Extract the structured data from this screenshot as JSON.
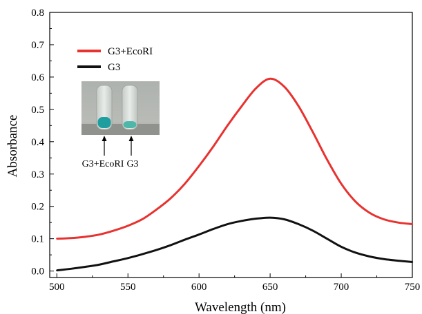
{
  "chart_data": {
    "type": "line",
    "title": "",
    "xlabel": "Wavelength (nm)",
    "ylabel": "Absorbance",
    "xlim": [
      495,
      750
    ],
    "ylim": [
      -0.02,
      0.8
    ],
    "x_ticks": [
      "500",
      "550",
      "600",
      "650",
      "700",
      "750"
    ],
    "y_ticks": [
      "0.0",
      "0.1",
      "0.2",
      "0.3",
      "0.4",
      "0.5",
      "0.6",
      "0.7",
      "0.8"
    ],
    "grid": false,
    "legend_position": "top-left",
    "series": [
      {
        "name": "G3+EcoRI",
        "color": "#e8322f",
        "x": [
          500,
          510,
          520,
          530,
          540,
          550,
          560,
          570,
          580,
          590,
          600,
          610,
          620,
          630,
          640,
          650,
          660,
          670,
          680,
          690,
          700,
          710,
          720,
          730,
          740,
          750
        ],
        "y": [
          0.1,
          0.102,
          0.106,
          0.113,
          0.125,
          0.14,
          0.16,
          0.19,
          0.225,
          0.27,
          0.325,
          0.385,
          0.45,
          0.51,
          0.565,
          0.595,
          0.57,
          0.51,
          0.43,
          0.345,
          0.27,
          0.215,
          0.18,
          0.16,
          0.15,
          0.145
        ]
      },
      {
        "name": "G3",
        "color": "#111111",
        "x": [
          500,
          510,
          520,
          530,
          540,
          550,
          560,
          570,
          580,
          590,
          600,
          610,
          620,
          630,
          640,
          650,
          660,
          670,
          680,
          690,
          700,
          710,
          720,
          730,
          740,
          750
        ],
        "y": [
          0.002,
          0.007,
          0.013,
          0.02,
          0.03,
          0.04,
          0.052,
          0.065,
          0.08,
          0.097,
          0.113,
          0.13,
          0.145,
          0.155,
          0.162,
          0.165,
          0.16,
          0.145,
          0.125,
          0.1,
          0.075,
          0.057,
          0.045,
          0.037,
          0.032,
          0.028
        ]
      }
    ]
  },
  "inset": {
    "labels": [
      "G3+EcoRI",
      "G3"
    ]
  }
}
